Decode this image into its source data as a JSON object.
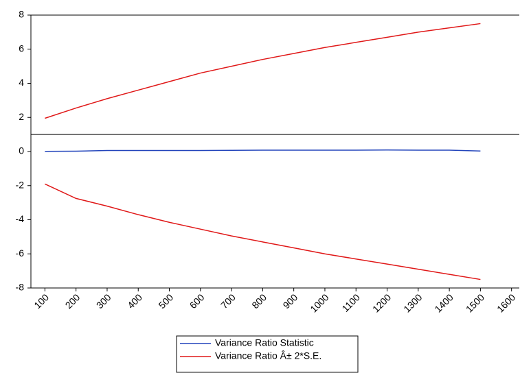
{
  "chart_data": {
    "type": "line",
    "x": [
      100,
      200,
      300,
      400,
      500,
      600,
      700,
      800,
      900,
      1000,
      1100,
      1200,
      1300,
      1400,
      1500
    ],
    "series": [
      {
        "name": "Variance Ratio Statistic",
        "color": "#2244bb",
        "values": [
          0.01,
          0.02,
          0.06,
          0.06,
          0.06,
          0.06,
          0.07,
          0.08,
          0.08,
          0.08,
          0.08,
          0.09,
          0.08,
          0.08,
          0.03
        ]
      },
      {
        "name": "Variance Ratio Â± 2*S.E.",
        "color": "#e01818",
        "values": [
          1.95,
          2.55,
          3.1,
          3.6,
          4.1,
          4.6,
          5.0,
          5.4,
          5.75,
          6.1,
          6.4,
          6.7,
          7.0,
          7.25,
          7.5
        ],
        "values_lower": [
          -1.9,
          -2.75,
          -3.2,
          -3.7,
          -4.15,
          -4.55,
          -4.95,
          -5.3,
          -5.65,
          -6.0,
          -6.3,
          -6.6,
          -6.9,
          -7.2,
          -7.5
        ]
      }
    ],
    "reference_lines": [
      1
    ],
    "xlim": [
      55,
      1625
    ],
    "xticks": [
      100,
      200,
      300,
      400,
      500,
      600,
      700,
      800,
      900,
      1000,
      1100,
      1200,
      1300,
      1400,
      1500,
      1600
    ],
    "ylim": [
      -8,
      8
    ],
    "yticks": [
      8,
      6,
      4,
      2,
      0,
      -2,
      -4,
      -6,
      -8
    ],
    "legend": "bottom"
  }
}
